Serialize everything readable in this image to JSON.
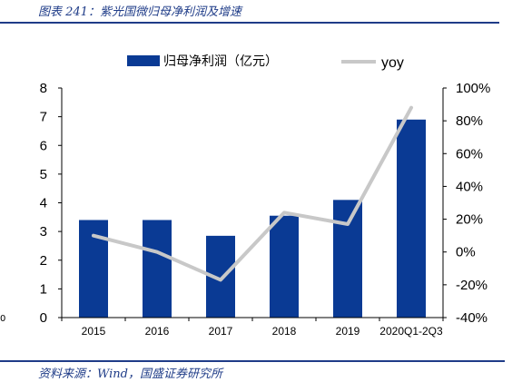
{
  "figure": {
    "title": "图表 241：紫光国微归母净利润及增速",
    "source": "资料来源：Wind，国盛证券研究所",
    "edge_mark": "0"
  },
  "colors": {
    "bar": "#0a3a94",
    "line": "#c8c8c8",
    "rule": "#1f3c88",
    "axis": "#000000"
  },
  "chart_data": {
    "type": "bar",
    "categories": [
      "2015",
      "2016",
      "2017",
      "2018",
      "2019",
      "2020Q1-2Q3"
    ],
    "series": [
      {
        "name": "归母净利润（亿元）",
        "type": "bar",
        "axis": "left",
        "values": [
          3.4,
          3.4,
          2.85,
          3.55,
          4.1,
          6.9
        ]
      },
      {
        "name": "yoy",
        "type": "line",
        "axis": "right",
        "values": [
          10,
          0,
          -17,
          24,
          17,
          88
        ]
      }
    ],
    "left_axis": {
      "ylim": [
        0,
        8
      ],
      "ticks": [
        "0",
        "1",
        "2",
        "3",
        "4",
        "5",
        "6",
        "7",
        "8"
      ]
    },
    "right_axis": {
      "ylim": [
        -40,
        100
      ],
      "ticks": [
        "-40%",
        "-20%",
        "0%",
        "20%",
        "40%",
        "60%",
        "80%",
        "100%"
      ]
    },
    "legend": "top",
    "grid": false
  }
}
